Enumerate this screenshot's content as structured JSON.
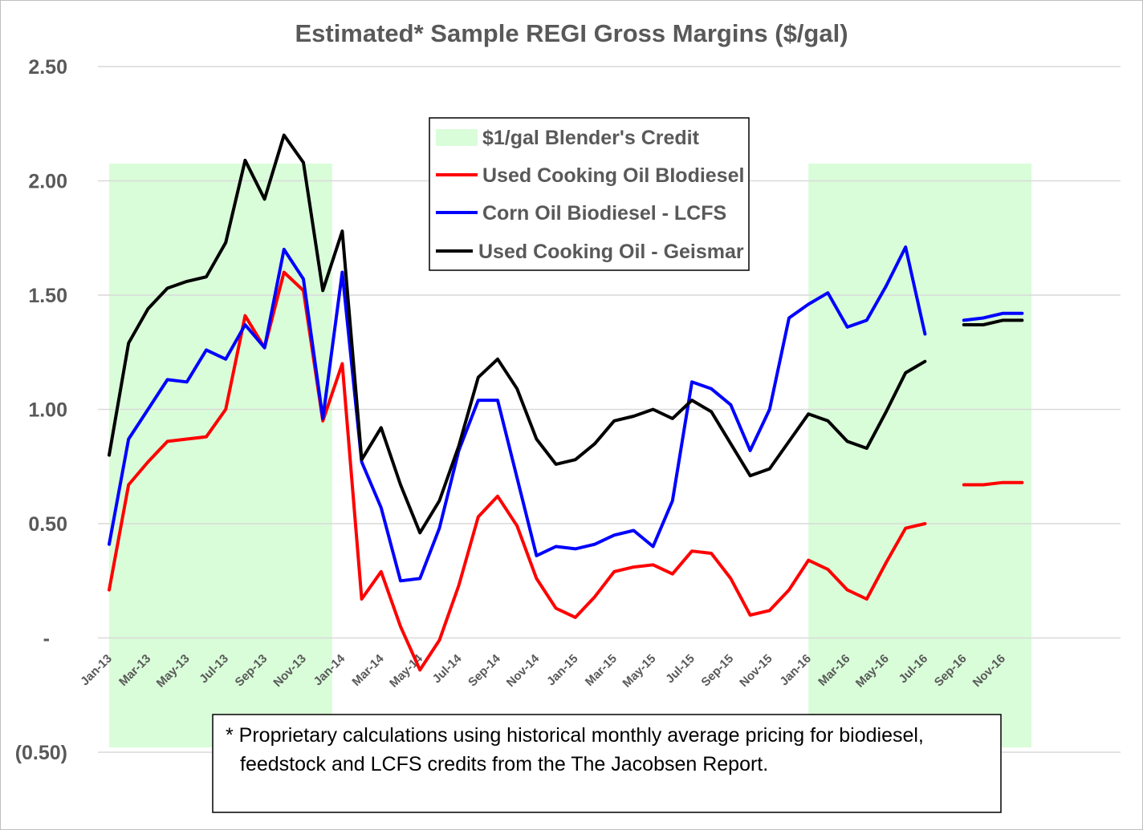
{
  "chart_data": {
    "type": "line",
    "title": "Estimated* Sample REGI Gross Margins ($/gal)",
    "xlabel": "",
    "ylabel": "",
    "ylim": [
      -0.5,
      2.5
    ],
    "yticks": [
      {
        "value": 2.5,
        "label": "2.50"
      },
      {
        "value": 2.0,
        "label": "2.00"
      },
      {
        "value": 1.5,
        "label": "1.50"
      },
      {
        "value": 1.0,
        "label": "1.00"
      },
      {
        "value": 0.5,
        "label": "0.50"
      },
      {
        "value": 0.0,
        "label": "-"
      },
      {
        "value": -0.5,
        "label": "(0.50)"
      }
    ],
    "x": [
      "Jan-13",
      "Feb-13",
      "Mar-13",
      "Apr-13",
      "May-13",
      "Jun-13",
      "Jul-13",
      "Aug-13",
      "Sep-13",
      "Oct-13",
      "Nov-13",
      "Dec-13",
      "Jan-14",
      "Feb-14",
      "Mar-14",
      "Apr-14",
      "May-14",
      "Jun-14",
      "Jul-14",
      "Aug-14",
      "Sep-14",
      "Oct-14",
      "Nov-14",
      "Dec-14",
      "Jan-15",
      "Feb-15",
      "Mar-15",
      "Apr-15",
      "May-15",
      "Jun-15",
      "Jul-15",
      "Aug-15",
      "Sep-15",
      "Oct-15",
      "Nov-15",
      "Dec-15",
      "Jan-16",
      "Feb-16",
      "Mar-16",
      "Apr-16",
      "May-16",
      "Jun-16",
      "Jul-16",
      "Aug-16",
      "Sep-16",
      "Oct-16",
      "Nov-16",
      "Dec-16"
    ],
    "xtick_labels": [
      "Jan-13",
      "Mar-13",
      "May-13",
      "Jul-13",
      "Sep-13",
      "Nov-13",
      "Jan-14",
      "Mar-14",
      "May-14",
      "Jul-14",
      "Sep-14",
      "Nov-14",
      "Jan-15",
      "Mar-15",
      "May-15",
      "Jul-15",
      "Sep-15",
      "Nov-15",
      "Jan-16",
      "Mar-16",
      "May-16",
      "Jul-16",
      "Sep-16",
      "Nov-16"
    ],
    "shaded_regions": [
      {
        "name": "$1/gal Blender's Credit",
        "start": "Jan-13",
        "end": "Dec-13",
        "color": "#d9fdd9"
      },
      {
        "name": "$1/gal Blender's Credit",
        "start": "Jan-16",
        "end": "Dec-16",
        "color": "#d9fdd9"
      }
    ],
    "series": [
      {
        "name": "Used Cooking Oil BIodiesel",
        "color": "#ff0000",
        "values": [
          0.21,
          0.67,
          0.77,
          0.86,
          0.87,
          0.88,
          1.0,
          1.41,
          1.27,
          1.6,
          1.52,
          0.95,
          1.2,
          0.17,
          0.29,
          0.05,
          -0.14,
          -0.01,
          0.23,
          0.53,
          0.62,
          0.49,
          0.26,
          0.13,
          0.09,
          0.18,
          0.29,
          0.31,
          0.32,
          0.28,
          0.38,
          0.37,
          0.26,
          0.1,
          0.12,
          0.21,
          0.34,
          0.3,
          0.21,
          0.17,
          0.33,
          0.48,
          0.5,
          null,
          0.67,
          0.67,
          0.68,
          0.68
        ]
      },
      {
        "name": "Corn Oil Biodiesel - LCFS",
        "color": "#0000ff",
        "values": [
          0.41,
          0.87,
          1.0,
          1.13,
          1.12,
          1.26,
          1.22,
          1.37,
          1.27,
          1.7,
          1.57,
          0.96,
          1.6,
          0.77,
          0.57,
          0.25,
          0.26,
          0.48,
          0.82,
          1.04,
          1.04,
          0.7,
          0.36,
          0.4,
          0.39,
          0.41,
          0.45,
          0.47,
          0.4,
          0.6,
          1.12,
          1.09,
          1.02,
          0.82,
          1.0,
          1.4,
          1.46,
          1.51,
          1.36,
          1.39,
          1.54,
          1.71,
          1.33,
          null,
          1.39,
          1.4,
          1.42,
          1.42
        ]
      },
      {
        "name": "Used Cooking Oil - Geismar",
        "color": "#000000",
        "values": [
          0.8,
          1.29,
          1.44,
          1.53,
          1.56,
          1.58,
          1.73,
          2.09,
          1.92,
          2.2,
          2.08,
          1.52,
          1.78,
          0.78,
          0.92,
          0.67,
          0.46,
          0.6,
          0.84,
          1.14,
          1.22,
          1.09,
          0.87,
          0.76,
          0.78,
          0.85,
          0.95,
          0.97,
          1.0,
          0.96,
          1.04,
          0.99,
          0.85,
          0.71,
          0.74,
          0.86,
          0.98,
          0.95,
          0.86,
          0.83,
          0.99,
          1.16,
          1.21,
          null,
          1.37,
          1.37,
          1.39,
          1.39
        ]
      }
    ],
    "legend": {
      "placement": "top-center",
      "entries": [
        {
          "label": "$1/gal Blender's Credit",
          "kind": "patch",
          "color": "#d9fdd9"
        },
        {
          "label": "Used Cooking Oil BIodiesel",
          "kind": "line",
          "color": "#ff0000"
        },
        {
          "label": "Corn Oil Biodiesel - LCFS",
          "kind": "line",
          "color": "#0000ff"
        },
        {
          "label": "Used Cooking Oil - Geismar",
          "kind": "line",
          "color": "#000000"
        }
      ]
    },
    "annotation": {
      "lines": [
        "* Proprietary calculations using historical monthly average pricing for biodiesel,",
        "feedstock and LCFS credits from the The Jacobsen Report."
      ]
    },
    "grid": {
      "horizontal": true,
      "vertical": false,
      "color": "#d9d9d9"
    }
  }
}
